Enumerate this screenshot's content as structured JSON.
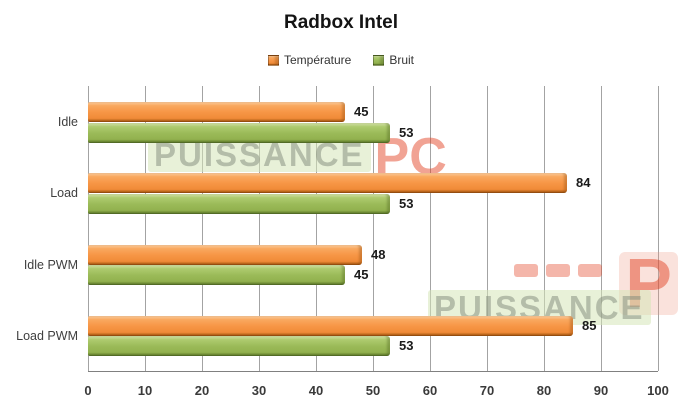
{
  "chart_data": {
    "type": "bar",
    "orientation": "horizontal",
    "title": "Radbox Intel",
    "categories": [
      "Idle",
      "Load",
      "Idle PWM",
      "Load PWM"
    ],
    "series": [
      {
        "name": "Température",
        "color": "#F79646",
        "values": [
          45,
          84,
          48,
          85
        ]
      },
      {
        "name": "Bruit",
        "color": "#9BBB59",
        "values": [
          53,
          53,
          45,
          53
        ]
      }
    ],
    "xlim": [
      0,
      100
    ],
    "xticks": [
      0,
      10,
      20,
      30,
      40,
      50,
      60,
      70,
      80,
      90,
      100
    ],
    "grid": true,
    "legend_position": "top",
    "value_labels": true,
    "gridline_color": "#A3A3A3",
    "axis_line_color": "#808080"
  },
  "watermarks": {
    "wm1_text": "PUISSANCE",
    "wm1_suffix": "PC",
    "wm2_text": "PUISSANCE",
    "wm2_suffix": "P"
  }
}
